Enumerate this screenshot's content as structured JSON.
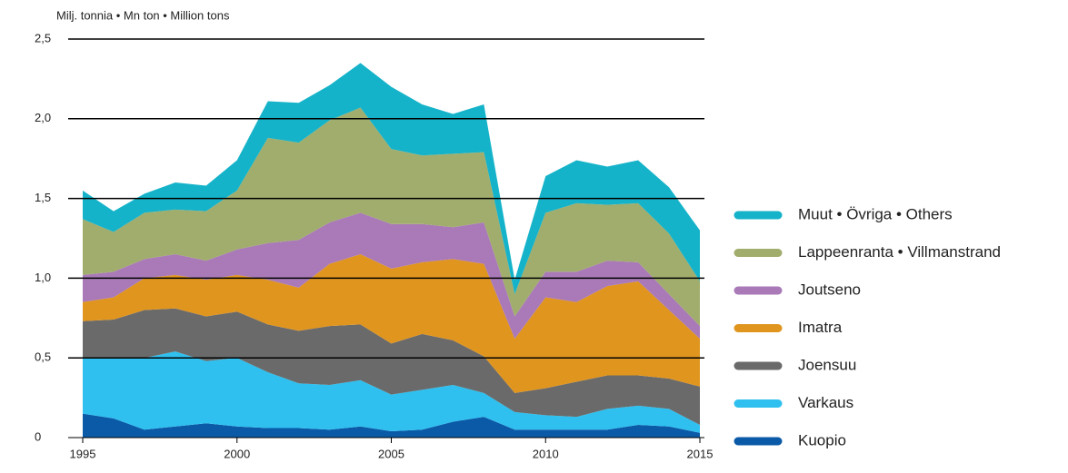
{
  "chart_data": {
    "type": "stacked_area",
    "title": "Milj. tonnia • Mn ton • Million tons",
    "x": [
      1995,
      1996,
      1997,
      1998,
      1999,
      2000,
      2001,
      2002,
      2003,
      2004,
      2005,
      2006,
      2007,
      2008,
      2009,
      2010,
      2011,
      2012,
      2013,
      2014,
      2015
    ],
    "xlim": [
      1995,
      2015
    ],
    "xticks": [
      1995,
      2000,
      2005,
      2010,
      2015
    ],
    "ylim": [
      0,
      2.5
    ],
    "yticks": [
      0,
      {
        "value": 0.5,
        "label": "0,5"
      },
      {
        "value": 1.0,
        "label": "1,0"
      },
      {
        "value": 1.5,
        "label": "1,5"
      },
      {
        "value": 2.0,
        "label": "2,0"
      },
      {
        "value": 2.5,
        "label": "2,5"
      }
    ],
    "grid": true,
    "legend": "right",
    "series": [
      {
        "name": "Kuopio",
        "color": "#0b5aa8",
        "values": [
          0.15,
          0.12,
          0.05,
          0.07,
          0.09,
          0.07,
          0.06,
          0.06,
          0.05,
          0.07,
          0.04,
          0.05,
          0.1,
          0.13,
          0.05,
          0.05,
          0.05,
          0.05,
          0.08,
          0.07,
          0.03
        ]
      },
      {
        "name": "Varkaus",
        "color": "#2fc0ef",
        "values": [
          0.35,
          0.38,
          0.45,
          0.47,
          0.39,
          0.43,
          0.35,
          0.28,
          0.28,
          0.29,
          0.23,
          0.25,
          0.23,
          0.15,
          0.11,
          0.09,
          0.08,
          0.13,
          0.12,
          0.11,
          0.05
        ]
      },
      {
        "name": "Joensuu",
        "color": "#6a6a6a",
        "values": [
          0.23,
          0.24,
          0.3,
          0.27,
          0.28,
          0.29,
          0.3,
          0.33,
          0.37,
          0.35,
          0.32,
          0.35,
          0.28,
          0.23,
          0.12,
          0.17,
          0.22,
          0.21,
          0.19,
          0.19,
          0.24
        ]
      },
      {
        "name": "Imatra",
        "color": "#e0951f",
        "values": [
          0.12,
          0.14,
          0.2,
          0.21,
          0.23,
          0.23,
          0.28,
          0.27,
          0.39,
          0.44,
          0.47,
          0.45,
          0.51,
          0.58,
          0.34,
          0.57,
          0.5,
          0.56,
          0.59,
          0.43,
          0.3
        ]
      },
      {
        "name": "Joutseno",
        "color": "#a97ab7",
        "values": [
          0.17,
          0.16,
          0.12,
          0.13,
          0.12,
          0.16,
          0.23,
          0.3,
          0.26,
          0.26,
          0.28,
          0.24,
          0.2,
          0.26,
          0.14,
          0.16,
          0.19,
          0.16,
          0.12,
          0.1,
          0.08
        ]
      },
      {
        "name": "Lappeenranta • Villmanstrand",
        "color": "#a1ad6d",
        "values": [
          0.35,
          0.25,
          0.29,
          0.28,
          0.31,
          0.37,
          0.66,
          0.61,
          0.64,
          0.66,
          0.47,
          0.43,
          0.46,
          0.44,
          0.14,
          0.37,
          0.43,
          0.35,
          0.37,
          0.38,
          0.28
        ]
      },
      {
        "name": "Muut • Övriga • Others",
        "color": "#15b3c9",
        "values": [
          0.18,
          0.13,
          0.12,
          0.17,
          0.16,
          0.19,
          0.23,
          0.25,
          0.22,
          0.28,
          0.39,
          0.32,
          0.25,
          0.3,
          0.09,
          0.23,
          0.27,
          0.24,
          0.27,
          0.29,
          0.32
        ]
      }
    ]
  }
}
